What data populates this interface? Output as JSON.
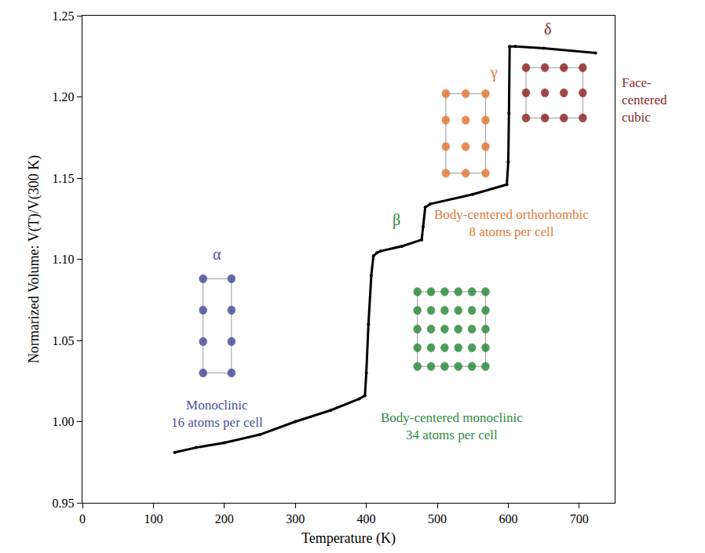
{
  "chart_data": {
    "type": "line",
    "x_label": "Temperature (K)",
    "y_label": "Normarized Volume: V(T)/V(300 K)",
    "x": [
      130,
      160,
      200,
      250,
      300,
      350,
      390,
      398,
      400,
      403,
      407,
      410,
      415,
      420,
      450,
      478,
      480,
      483,
      490,
      550,
      598,
      600,
      601,
      602,
      610,
      650,
      723
    ],
    "values": [
      0.981,
      0.984,
      0.987,
      0.992,
      1.0,
      1.007,
      1.014,
      1.016,
      1.03,
      1.06,
      1.09,
      1.102,
      1.104,
      1.105,
      1.108,
      1.112,
      1.12,
      1.132,
      1.134,
      1.14,
      1.146,
      1.16,
      1.19,
      1.231,
      1.231,
      1.23,
      1.227
    ],
    "color": "#000000",
    "marker": "circle",
    "line_style": "solid",
    "xlim": [
      0,
      750
    ],
    "xticks": [
      0,
      100,
      200,
      300,
      400,
      500,
      600,
      700
    ],
    "ylim": [
      0.95,
      1.25
    ],
    "yticks": [
      0.95,
      {
        "value": 1.0,
        "label": "1.00"
      },
      1.05,
      {
        "value": 1.1,
        "label": "1.10"
      },
      1.15,
      {
        "value": 1.2,
        "label": "1.20"
      },
      1.25
    ],
    "grid": false,
    "annotations": [
      {
        "text": "α",
        "color": "#4b4f9e"
      },
      {
        "lines": [
          "Monoclinic",
          "16 atoms per cell"
        ],
        "color": "#4b4f9e"
      },
      {
        "text": "β",
        "color": "#2e8b3e"
      },
      {
        "lines": [
          "Body-centered monoclinic",
          "34 atoms per cell"
        ],
        "color": "#2e8b3e"
      },
      {
        "text": "γ",
        "color": "#e07b39"
      },
      {
        "lines": [
          "Body-centered orthorhombic",
          "8 atoms per cell"
        ],
        "color": "#e07b39"
      },
      {
        "text": "δ",
        "color": "#8b2a2a"
      },
      {
        "lines": [
          "Face-",
          "centered",
          "cubic"
        ],
        "color": "#8b2a2a"
      }
    ]
  }
}
